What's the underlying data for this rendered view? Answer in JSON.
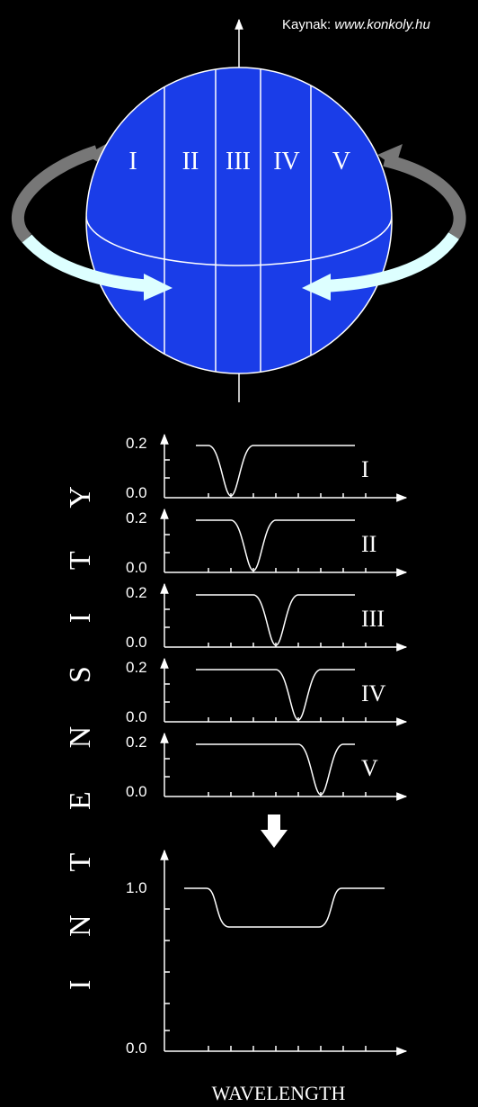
{
  "source": {
    "prefix": "Kaynak:",
    "url": "www.konkoly.hu"
  },
  "sphere": {
    "zones": [
      "I",
      "II",
      "III",
      "IV",
      "V"
    ]
  },
  "panels": [
    {
      "ticks": [
        "0.2",
        "0.0"
      ],
      "label": "I"
    },
    {
      "ticks": [
        "0.2",
        "0.0"
      ],
      "label": "II"
    },
    {
      "ticks": [
        "0.2",
        "0.0"
      ],
      "label": "III"
    },
    {
      "ticks": [
        "0.2",
        "0.0"
      ],
      "label": "IV"
    },
    {
      "ticks": [
        "0.2",
        "0.0"
      ],
      "label": "V"
    }
  ],
  "sum_panel": {
    "ticks": [
      "1.0",
      "0.0"
    ]
  },
  "y_label": "INTENSITY",
  "x_label": "WAVELENGTH"
}
